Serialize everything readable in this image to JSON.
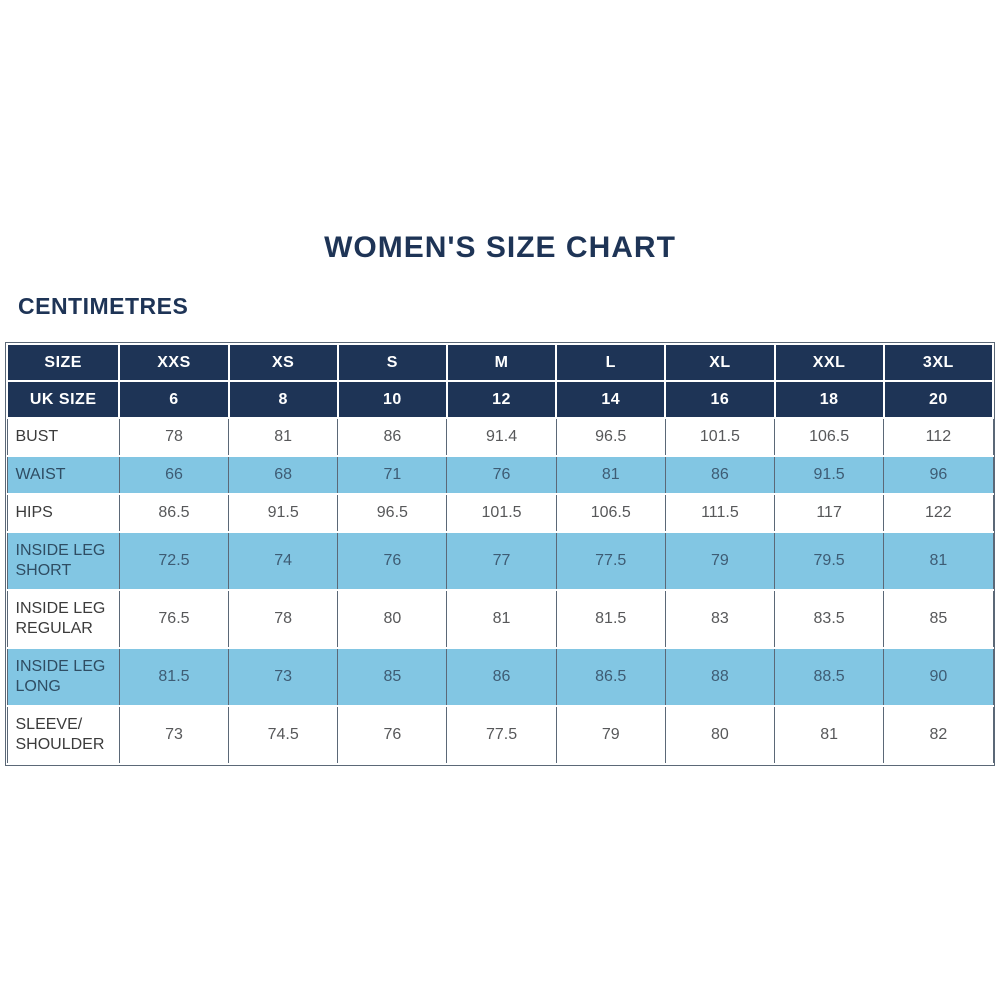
{
  "page": {
    "title": "WOMEN'S SIZE CHART",
    "unit_label": "CENTIMETRES"
  },
  "colors": {
    "navy": "#1e3456",
    "light_blue": "#82c6e3",
    "border_gray": "#5b6877",
    "blue_row_text": "#3e5c74",
    "value_text": "#57585a",
    "label_text": "#3b3b3b"
  },
  "table": {
    "header_row": [
      "SIZE",
      "XXS",
      "XS",
      "S",
      "M",
      "L",
      "XL",
      "XXL",
      "3XL"
    ],
    "uk_size_row": [
      "UK SIZE",
      "6",
      "8",
      "10",
      "12",
      "14",
      "16",
      "18",
      "20"
    ],
    "rows": [
      {
        "label": "BUST",
        "highlight": false,
        "values": [
          "78",
          "81",
          "86",
          "91.4",
          "96.5",
          "101.5",
          "106.5",
          "112"
        ]
      },
      {
        "label": "WAIST",
        "highlight": true,
        "values": [
          "66",
          "68",
          "71",
          "76",
          "81",
          "86",
          "91.5",
          "96"
        ]
      },
      {
        "label": "HIPS",
        "highlight": false,
        "values": [
          "86.5",
          "91.5",
          "96.5",
          "101.5",
          "106.5",
          "111.5",
          "117",
          "122"
        ]
      },
      {
        "label": "INSIDE LEG SHORT",
        "highlight": true,
        "values": [
          "72.5",
          "74",
          "76",
          "77",
          "77.5",
          "79",
          "79.5",
          "81"
        ]
      },
      {
        "label": "INSIDE LEG REGULAR",
        "highlight": false,
        "values": [
          "76.5",
          "78",
          "80",
          "81",
          "81.5",
          "83",
          "83.5",
          "85"
        ]
      },
      {
        "label": "INSIDE LEG LONG",
        "highlight": true,
        "values": [
          "81.5",
          "73",
          "85",
          "86",
          "86.5",
          "88",
          "88.5",
          "90"
        ]
      },
      {
        "label": "SLEEVE/ SHOULDER",
        "highlight": false,
        "values": [
          "73",
          "74.5",
          "76",
          "77.5",
          "79",
          "80",
          "81",
          "82"
        ]
      }
    ]
  }
}
